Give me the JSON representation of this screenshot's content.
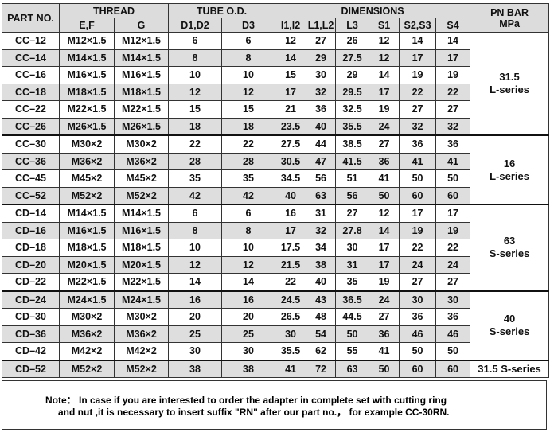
{
  "table": {
    "header": {
      "part_no": "PART NO.",
      "thread": "THREAD",
      "tube_od": "TUBE O.D.",
      "dimensions": "DIMENSIONS",
      "pn": [
        "PN BAR",
        "MPa"
      ],
      "sub": [
        "E,F",
        "G",
        "D1,D2",
        "D3",
        "l1,l2",
        "L1,L2",
        "L3",
        "S1",
        "S2,S3",
        "S4"
      ]
    },
    "groups": [
      {
        "pn": [
          "31.5",
          "L-series"
        ],
        "rows": [
          [
            "CC–12",
            "M12×1.5",
            "M12×1.5",
            6,
            6,
            12,
            27,
            26,
            12,
            14,
            14
          ],
          [
            "CC–14",
            "M14×1.5",
            "M14×1.5",
            8,
            8,
            14,
            29,
            27.5,
            12,
            17,
            17
          ],
          [
            "CC–16",
            "M16×1.5",
            "M16×1.5",
            10,
            10,
            15,
            30,
            29,
            14,
            19,
            19
          ],
          [
            "CC–18",
            "M18×1.5",
            "M18×1.5",
            12,
            12,
            17,
            32,
            29.5,
            17,
            22,
            22
          ],
          [
            "CC–22",
            "M22×1.5",
            "M22×1.5",
            15,
            15,
            21,
            36,
            32.5,
            19,
            27,
            27
          ],
          [
            "CC–26",
            "M26×1.5",
            "M26×1.5",
            18,
            18,
            23.5,
            40,
            35.5,
            24,
            32,
            32
          ]
        ]
      },
      {
        "pn": [
          "16",
          "L-series"
        ],
        "rows": [
          [
            "CC–30",
            "M30×2",
            "M30×2",
            22,
            22,
            27.5,
            44,
            38.5,
            27,
            36,
            36
          ],
          [
            "CC–36",
            "M36×2",
            "M36×2",
            28,
            28,
            30.5,
            47,
            41.5,
            36,
            41,
            41
          ],
          [
            "CC–45",
            "M45×2",
            "M45×2",
            35,
            35,
            34.5,
            56,
            51,
            41,
            50,
            50
          ],
          [
            "CC–52",
            "M52×2",
            "M52×2",
            42,
            42,
            40,
            63,
            56,
            50,
            60,
            60
          ]
        ]
      },
      {
        "pn": [
          "63",
          "S-series"
        ],
        "rows": [
          [
            "CD–14",
            "M14×1.5",
            "M14×1.5",
            6,
            6,
            16,
            31,
            27,
            12,
            17,
            17
          ],
          [
            "CD–16",
            "M16×1.5",
            "M16×1.5",
            8,
            8,
            17,
            32,
            27.8,
            14,
            19,
            19
          ],
          [
            "CD–18",
            "M18×1.5",
            "M18×1.5",
            10,
            10,
            17.5,
            34,
            30,
            17,
            22,
            22
          ],
          [
            "CD–20",
            "M20×1.5",
            "M20×1.5",
            12,
            12,
            21.5,
            38,
            31,
            17,
            24,
            24
          ],
          [
            "CD–22",
            "M22×1.5",
            "M22×1.5",
            14,
            14,
            22,
            40,
            35,
            19,
            27,
            27
          ]
        ]
      },
      {
        "pn": [
          "40",
          "S-series"
        ],
        "rows": [
          [
            "CD–24",
            "M24×1.5",
            "M24×1.5",
            16,
            16,
            24.5,
            43,
            36.5,
            24,
            30,
            30
          ],
          [
            "CD–30",
            "M30×2",
            "M30×2",
            20,
            20,
            26.5,
            48,
            44.5,
            27,
            36,
            36
          ],
          [
            "CD–36",
            "M36×2",
            "M36×2",
            25,
            25,
            30,
            54,
            50,
            36,
            46,
            46
          ],
          [
            "CD–42",
            "M42×2",
            "M42×2",
            30,
            30,
            35.5,
            62,
            55,
            41,
            50,
            50
          ]
        ]
      },
      {
        "pn": [
          "31.5 S-series"
        ],
        "rows": [
          [
            "CD–52",
            "M52×2",
            "M52×2",
            38,
            38,
            41,
            72,
            63,
            50,
            60,
            60
          ]
        ]
      }
    ]
  },
  "note": {
    "label": "Note：",
    "lines": [
      "In case if you are interested to order the adapter in complete set with cutting ring",
      "and nut ,it is necessary to insert suffix \"RN\" after our part no.， for example CC-30RN."
    ]
  }
}
